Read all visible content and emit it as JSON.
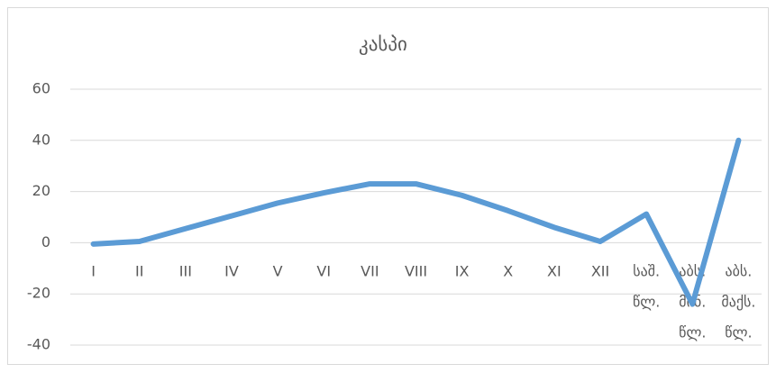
{
  "chart_data": {
    "type": "line",
    "title": "კასპი",
    "categories": [
      "I",
      "II",
      "III",
      "IV",
      "V",
      "VI",
      "VII",
      "VIII",
      "IX",
      "X",
      "XI",
      "XII",
      "საშ. წლ.",
      "აბს. მინ. წლ.",
      "აბს. მაქს. წლ."
    ],
    "series": [
      {
        "name": "კასპი",
        "color": "#5b9bd5",
        "values": [
          -0.5,
          0.5,
          5.5,
          10.5,
          15.5,
          19.5,
          23,
          23,
          18.5,
          12.5,
          6,
          0.5,
          11.2,
          -24,
          40
        ]
      }
    ],
    "ylim": [
      -40,
      60
    ],
    "yticks": [
      -40,
      -20,
      0,
      20,
      40,
      60
    ],
    "grid": true
  }
}
